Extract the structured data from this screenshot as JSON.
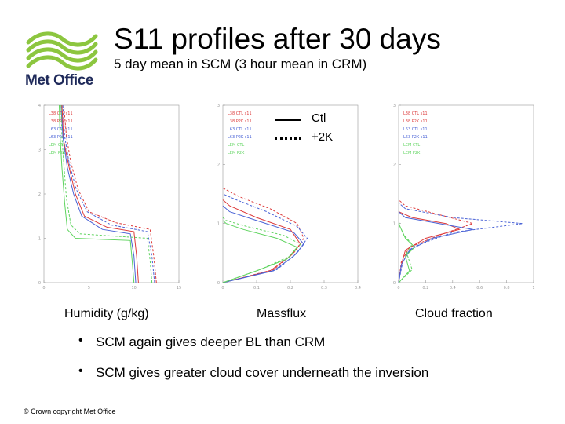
{
  "header": {
    "logo_text": "Met Office",
    "title": "S11 profiles after 30 days",
    "subtitle": "5 day mean in SCM (3 hour mean in CRM)"
  },
  "legend": {
    "solid_label": "Ctl",
    "dotted_label": "+2K"
  },
  "captions": {
    "humidity": "Humidity (g/kg)",
    "massflux": "Massflux",
    "cloud": "Cloud fraction"
  },
  "bullets": [
    "SCM again gives deeper BL than CRM",
    "SCM gives greater cloud cover underneath the inversion"
  ],
  "footer": "© Crown copyright   Met Office",
  "colors": {
    "red": "#dd3b3b",
    "blue": "#4a63d6",
    "green": "#5fd45f",
    "logo_green": "#8cc63f",
    "logo_text": "#1f2a5a"
  },
  "chart_data": [
    {
      "type": "line",
      "name": "humidity",
      "xlim": [
        0,
        15
      ],
      "ylim": [
        0,
        4
      ],
      "xticks": [
        0,
        5,
        10,
        15
      ],
      "yticks": [
        0,
        1,
        2,
        3,
        4
      ],
      "legend": [
        "L38 CTL s11",
        "L38 P2K s11",
        "L63 CTL s11",
        "L63 P2K s11",
        "LEM CTL",
        "LEM P2K"
      ],
      "series": [
        {
          "color": "red",
          "style": "solid",
          "points": [
            [
              10.5,
              0
            ],
            [
              10.3,
              0.6
            ],
            [
              10.0,
              1.15
            ],
            [
              7.0,
              1.25
            ],
            [
              4.5,
              1.5
            ],
            [
              3.5,
              2.0
            ],
            [
              2.8,
              2.6
            ],
            [
              2.2,
              3.2
            ],
            [
              2.0,
              4.0
            ]
          ]
        },
        {
          "color": "red",
          "style": "dashed",
          "points": [
            [
              12.5,
              0
            ],
            [
              12.2,
              0.6
            ],
            [
              11.8,
              1.2
            ],
            [
              8.0,
              1.35
            ],
            [
              5.0,
              1.6
            ],
            [
              3.8,
              2.1
            ],
            [
              3.0,
              2.7
            ],
            [
              2.5,
              3.3
            ],
            [
              2.2,
              4.0
            ]
          ]
        },
        {
          "color": "blue",
          "style": "solid",
          "points": [
            [
              10.2,
              0
            ],
            [
              10.0,
              0.6
            ],
            [
              9.6,
              1.1
            ],
            [
              6.5,
              1.2
            ],
            [
              4.2,
              1.5
            ],
            [
              3.3,
              2.0
            ],
            [
              2.6,
              2.6
            ],
            [
              2.1,
              3.3
            ],
            [
              1.9,
              4.0
            ]
          ]
        },
        {
          "color": "blue",
          "style": "dashed",
          "points": [
            [
              12.3,
              0
            ],
            [
              12.0,
              0.6
            ],
            [
              11.5,
              1.15
            ],
            [
              7.5,
              1.3
            ],
            [
              4.8,
              1.6
            ],
            [
              3.6,
              2.1
            ],
            [
              2.8,
              2.7
            ],
            [
              2.3,
              3.3
            ],
            [
              2.1,
              4.0
            ]
          ]
        },
        {
          "color": "green",
          "style": "solid",
          "points": [
            [
              10.0,
              0
            ],
            [
              9.8,
              0.5
            ],
            [
              9.6,
              0.95
            ],
            [
              3.5,
              1.0
            ],
            [
              2.6,
              1.2
            ],
            [
              2.3,
              1.8
            ],
            [
              2.0,
              2.6
            ],
            [
              1.8,
              3.3
            ],
            [
              1.7,
              4.0
            ]
          ]
        },
        {
          "color": "green",
          "style": "dashed",
          "points": [
            [
              12.0,
              0
            ],
            [
              11.8,
              0.5
            ],
            [
              11.5,
              1.0
            ],
            [
              4.0,
              1.1
            ],
            [
              3.0,
              1.3
            ],
            [
              2.5,
              1.9
            ],
            [
              2.2,
              2.7
            ],
            [
              2.0,
              3.3
            ],
            [
              1.9,
              4.0
            ]
          ]
        }
      ]
    },
    {
      "type": "line",
      "name": "massflux",
      "xlim": [
        0,
        0.4
      ],
      "ylim": [
        0,
        3
      ],
      "xticks": [
        0.0,
        0.1,
        0.2,
        0.3,
        0.4
      ],
      "yticks": [
        0,
        1,
        2,
        3
      ],
      "legend": [
        "L38 CTL s11",
        "L38 P2K s11",
        "L63 CTL s11",
        "L63 P2K s11",
        "LEM CTL",
        "LEM P2K"
      ],
      "series": [
        {
          "color": "red",
          "style": "solid",
          "points": [
            [
              0,
              0
            ],
            [
              0.14,
              0.2
            ],
            [
              0.2,
              0.45
            ],
            [
              0.23,
              0.65
            ],
            [
              0.2,
              0.9
            ],
            [
              0.1,
              1.1
            ],
            [
              0.02,
              1.3
            ],
            [
              0,
              1.4
            ]
          ]
        },
        {
          "color": "red",
          "style": "dashed",
          "points": [
            [
              0,
              0
            ],
            [
              0.15,
              0.22
            ],
            [
              0.21,
              0.5
            ],
            [
              0.24,
              0.75
            ],
            [
              0.22,
              1.0
            ],
            [
              0.14,
              1.25
            ],
            [
              0.05,
              1.45
            ],
            [
              0,
              1.6
            ]
          ]
        },
        {
          "color": "blue",
          "style": "solid",
          "points": [
            [
              0,
              0
            ],
            [
              0.15,
              0.2
            ],
            [
              0.21,
              0.45
            ],
            [
              0.24,
              0.65
            ],
            [
              0.21,
              0.85
            ],
            [
              0.1,
              1.05
            ],
            [
              0.02,
              1.2
            ],
            [
              0,
              1.3
            ]
          ]
        },
        {
          "color": "blue",
          "style": "dashed",
          "points": [
            [
              0,
              0
            ],
            [
              0.16,
              0.22
            ],
            [
              0.22,
              0.5
            ],
            [
              0.25,
              0.75
            ],
            [
              0.22,
              0.95
            ],
            [
              0.13,
              1.2
            ],
            [
              0.04,
              1.4
            ],
            [
              0,
              1.5
            ]
          ]
        },
        {
          "color": "green",
          "style": "solid",
          "points": [
            [
              0,
              0
            ],
            [
              0.1,
              0.2
            ],
            [
              0.19,
              0.4
            ],
            [
              0.22,
              0.6
            ],
            [
              0.16,
              0.75
            ],
            [
              0.06,
              0.9
            ],
            [
              0.01,
              1.0
            ],
            [
              0,
              1.05
            ]
          ]
        },
        {
          "color": "green",
          "style": "dashed",
          "points": [
            [
              0,
              0
            ],
            [
              0.11,
              0.22
            ],
            [
              0.2,
              0.45
            ],
            [
              0.23,
              0.65
            ],
            [
              0.18,
              0.8
            ],
            [
              0.07,
              0.95
            ],
            [
              0.01,
              1.05
            ],
            [
              0,
              1.1
            ]
          ]
        }
      ]
    },
    {
      "type": "line",
      "name": "cloud",
      "xlim": [
        0,
        1.0
      ],
      "ylim": [
        0,
        3
      ],
      "xticks": [
        0.0,
        0.2,
        0.4,
        0.6,
        0.8,
        1.0
      ],
      "yticks": [
        0,
        1,
        2,
        3
      ],
      "legend": [
        "L38 CTL s11",
        "L38 P2K s11",
        "L63 CTL s11",
        "L63 P2K s11",
        "LEM CTL",
        "LEM P2K"
      ],
      "series": [
        {
          "color": "red",
          "style": "solid",
          "points": [
            [
              0,
              0
            ],
            [
              0.02,
              0.3
            ],
            [
              0.05,
              0.55
            ],
            [
              0.2,
              0.75
            ],
            [
              0.45,
              0.9
            ],
            [
              0.35,
              1.0
            ],
            [
              0.1,
              1.1
            ],
            [
              0,
              1.2
            ]
          ]
        },
        {
          "color": "red",
          "style": "dashed",
          "points": [
            [
              0,
              0
            ],
            [
              0.02,
              0.35
            ],
            [
              0.08,
              0.6
            ],
            [
              0.3,
              0.8
            ],
            [
              0.55,
              1.0
            ],
            [
              0.3,
              1.15
            ],
            [
              0.05,
              1.3
            ],
            [
              0,
              1.4
            ]
          ]
        },
        {
          "color": "blue",
          "style": "solid",
          "points": [
            [
              0,
              0
            ],
            [
              0.02,
              0.3
            ],
            [
              0.08,
              0.55
            ],
            [
              0.25,
              0.75
            ],
            [
              0.55,
              0.9
            ],
            [
              0.3,
              1.0
            ],
            [
              0.05,
              1.1
            ],
            [
              0,
              1.2
            ]
          ]
        },
        {
          "color": "blue",
          "style": "dashed",
          "points": [
            [
              0,
              0
            ],
            [
              0.03,
              0.35
            ],
            [
              0.1,
              0.6
            ],
            [
              0.4,
              0.85
            ],
            [
              0.92,
              1.0
            ],
            [
              0.4,
              1.1
            ],
            [
              0.05,
              1.25
            ],
            [
              0,
              1.35
            ]
          ]
        },
        {
          "color": "green",
          "style": "solid",
          "points": [
            [
              0,
              0
            ],
            [
              0.08,
              0.2
            ],
            [
              0.05,
              0.45
            ],
            [
              0.12,
              0.6
            ],
            [
              0.05,
              0.75
            ],
            [
              0.02,
              0.9
            ],
            [
              0,
              1.0
            ]
          ]
        },
        {
          "color": "green",
          "style": "dashed",
          "points": [
            [
              0,
              0
            ],
            [
              0.1,
              0.22
            ],
            [
              0.06,
              0.5
            ],
            [
              0.1,
              0.65
            ],
            [
              0.04,
              0.8
            ],
            [
              0.01,
              0.95
            ],
            [
              0,
              1.05
            ]
          ]
        }
      ]
    }
  ]
}
